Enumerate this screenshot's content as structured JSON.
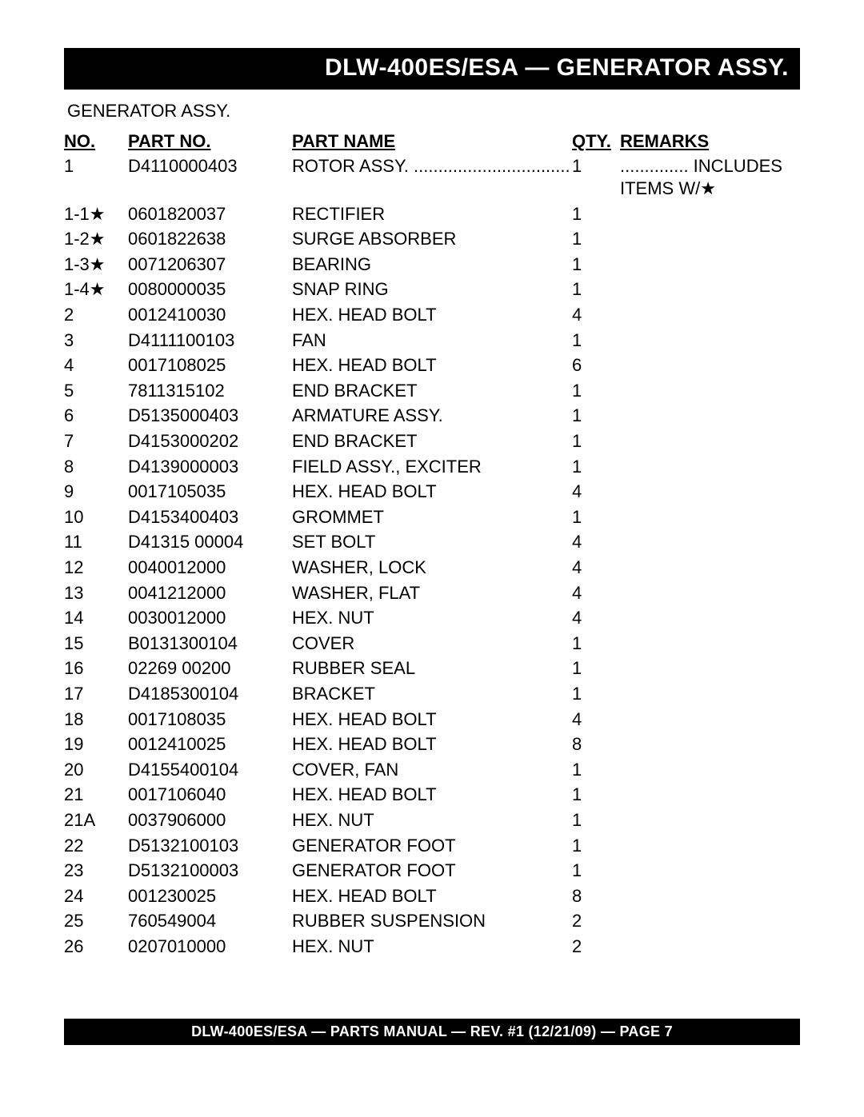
{
  "header": {
    "title": "DLW-400ES/ESA — GENERATOR ASSY."
  },
  "subtitle": "GENERATOR ASSY.",
  "columns": {
    "no": "No.",
    "partNo": "Part No.",
    "partName": "Part Name",
    "qty": "Qty.",
    "remarks": "Remarks"
  },
  "rows": [
    {
      "no": "1",
      "part": "D4110000403",
      "name": "ROTOR ASSY. ................................",
      "qty": "1",
      "remarks": ".............. INCLUDES ITEMS W/★"
    },
    {
      "no": "1-1★",
      "part": "0601820037",
      "name": "RECTIFIER",
      "qty": "1",
      "remarks": ""
    },
    {
      "no": "1-2★",
      "part": "0601822638",
      "name": "SURGE ABSORBER",
      "qty": "1",
      "remarks": ""
    },
    {
      "no": "1-3★",
      "part": "0071206307",
      "name": "BEARING",
      "qty": "1",
      "remarks": ""
    },
    {
      "no": "1-4★",
      "part": "0080000035",
      "name": "SNAP RING",
      "qty": "1",
      "remarks": ""
    },
    {
      "no": "2",
      "part": "0012410030",
      "name": "HEX. HEAD BOLT",
      "qty": "4",
      "remarks": ""
    },
    {
      "no": "3",
      "part": "D4111100103",
      "name": "FAN",
      "qty": "1",
      "remarks": ""
    },
    {
      "no": "4",
      "part": "0017108025",
      "name": "HEX. HEAD BOLT",
      "qty": "6",
      "remarks": ""
    },
    {
      "no": "5",
      "part": "7811315102",
      "name": "END BRACKET",
      "qty": "1",
      "remarks": ""
    },
    {
      "no": "6",
      "part": "D5135000403",
      "name": "ARMATURE ASSY.",
      "qty": "1",
      "remarks": ""
    },
    {
      "no": "7",
      "part": "D4153000202",
      "name": "END BRACKET",
      "qty": "1",
      "remarks": ""
    },
    {
      "no": "8",
      "part": "D4139000003",
      "name": "FIELD ASSY., EXCITER",
      "qty": "1",
      "remarks": ""
    },
    {
      "no": "9",
      "part": "0017105035",
      "name": "HEX. HEAD BOLT",
      "qty": "4",
      "remarks": ""
    },
    {
      "no": "10",
      "part": "D4153400403",
      "name": "GROMMET",
      "qty": "1",
      "remarks": ""
    },
    {
      "no": "11",
      "part": "D41315 00004",
      "name": "SET BOLT",
      "qty": "4",
      "remarks": ""
    },
    {
      "no": "12",
      "part": "0040012000",
      "name": "WASHER, LOCK",
      "qty": "4",
      "remarks": ""
    },
    {
      "no": "13",
      "part": "0041212000",
      "name": "WASHER, FLAT",
      "qty": "4",
      "remarks": ""
    },
    {
      "no": "14",
      "part": "0030012000",
      "name": "HEX. NUT",
      "qty": "4",
      "remarks": ""
    },
    {
      "no": "15",
      "part": "B0131300104",
      "name": "COVER",
      "qty": "1",
      "remarks": ""
    },
    {
      "no": "16",
      "part": "02269 00200",
      "name": "RUBBER SEAL",
      "qty": "1",
      "remarks": ""
    },
    {
      "no": "17",
      "part": "D4185300104",
      "name": "BRACKET",
      "qty": "1",
      "remarks": ""
    },
    {
      "no": "18",
      "part": "0017108035",
      "name": "HEX. HEAD BOLT",
      "qty": "4",
      "remarks": ""
    },
    {
      "no": "19",
      "part": "0012410025",
      "name": "HEX. HEAD BOLT",
      "qty": "8",
      "remarks": ""
    },
    {
      "no": "20",
      "part": "D4155400104",
      "name": "COVER, FAN",
      "qty": "1",
      "remarks": ""
    },
    {
      "no": "21",
      "part": "0017106040",
      "name": "HEX. HEAD BOLT",
      "qty": "1",
      "remarks": ""
    },
    {
      "no": "21A",
      "part": "0037906000",
      "name": "HEX. NUT",
      "qty": "1",
      "remarks": ""
    },
    {
      "no": "22",
      "part": "D5132100103",
      "name": "GENERATOR FOOT",
      "qty": "1",
      "remarks": ""
    },
    {
      "no": "23",
      "part": "D5132100003",
      "name": "GENERATOR FOOT",
      "qty": "1",
      "remarks": ""
    },
    {
      "no": "24",
      "part": "001230025",
      "name": "HEX. HEAD BOLT",
      "qty": "8",
      "remarks": ""
    },
    {
      "no": "25",
      "part": "760549004",
      "name": "RUBBER SUSPENSION",
      "qty": "2",
      "remarks": ""
    },
    {
      "no": "26",
      "part": "0207010000",
      "name": "HEX. NUT",
      "qty": "2",
      "remarks": ""
    }
  ],
  "footer": "DLW-400ES/ESA —  PARTS MANUAL — REV. #1  (12/21/09) — PAGE 7"
}
